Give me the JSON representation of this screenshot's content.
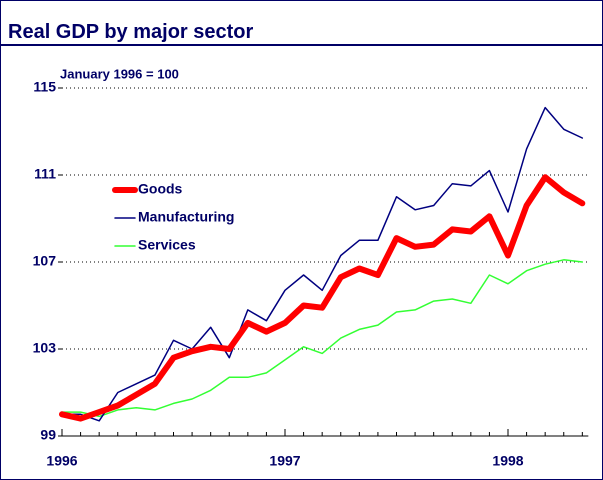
{
  "chart_data": {
    "type": "line",
    "title": "Real GDP by major sector",
    "subtitle": "January 1996 = 100",
    "categories": [
      "1996",
      null,
      null,
      null,
      null,
      null,
      null,
      null,
      null,
      null,
      null,
      null,
      "1997",
      null,
      null,
      null,
      null,
      null,
      null,
      null,
      null,
      null,
      null,
      null,
      "1998",
      null,
      null,
      null,
      null
    ],
    "series": [
      {
        "name": "Goods",
        "color": "#ff0000",
        "values": [
          100.0,
          99.8,
          100.1,
          100.4,
          100.9,
          101.4,
          102.6,
          102.9,
          103.1,
          103.0,
          104.2,
          103.8,
          104.2,
          105.0,
          104.9,
          106.3,
          106.7,
          106.4,
          108.1,
          107.7,
          107.8,
          108.5,
          108.4,
          109.1,
          107.3,
          109.6,
          110.9,
          110.2,
          109.7
        ]
      },
      {
        "name": "Manufacturing",
        "color": "#000080",
        "values": [
          100.0,
          100.0,
          99.7,
          101.0,
          101.4,
          101.8,
          103.4,
          103.0,
          104.0,
          102.6,
          104.8,
          104.3,
          105.7,
          106.4,
          105.7,
          107.3,
          108.0,
          108.0,
          110.0,
          109.4,
          109.6,
          110.6,
          110.5,
          111.2,
          109.3,
          112.2,
          114.1,
          113.1,
          112.7
        ]
      },
      {
        "name": "Services",
        "color": "#33ff33",
        "values": [
          100.1,
          100.1,
          99.9,
          100.2,
          100.3,
          100.2,
          100.5,
          100.7,
          101.1,
          101.7,
          101.7,
          101.9,
          102.5,
          103.1,
          102.8,
          103.5,
          103.9,
          104.1,
          104.7,
          104.8,
          105.2,
          105.3,
          105.1,
          106.4,
          106.0,
          106.6,
          106.9,
          107.1,
          107.0
        ]
      }
    ],
    "ylim": [
      99,
      115
    ],
    "yticks": [
      99,
      103,
      107,
      111,
      115
    ],
    "grid": true
  }
}
